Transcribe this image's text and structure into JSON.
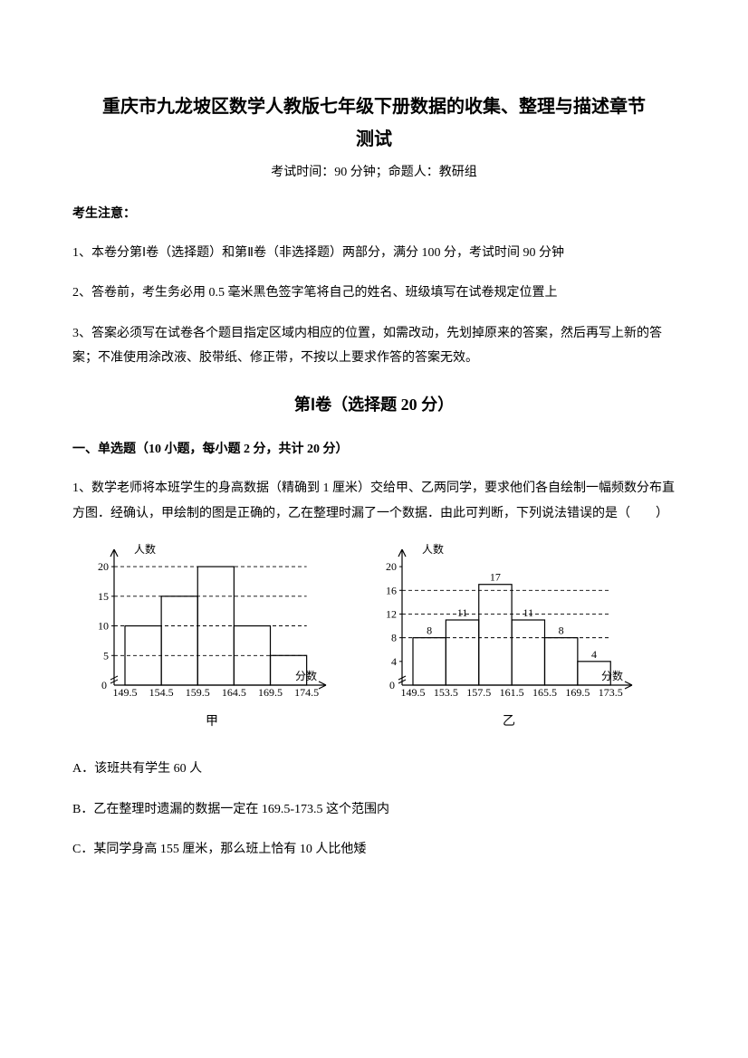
{
  "title_line1": "重庆市九龙坡区数学人教版七年级下册数据的收集、整理与描述章节",
  "title_line2": "测试",
  "subtitle": "考试时间：90 分钟；命题人：教研组",
  "notice_head": "考生注意：",
  "notice": [
    "1、本卷分第Ⅰ卷（选择题）和第Ⅱ卷（非选择题）两部分，满分 100 分，考试时间 90 分钟",
    "2、答卷前，考生务必用 0.5 毫米黑色签字笔将自己的姓名、班级填写在试卷规定位置上",
    "3、答案必须写在试卷各个题目指定区域内相应的位置，如需改动，先划掉原来的答案，然后再写上新的答案；不准使用涂改液、胶带纸、修正带，不按以上要求作答的答案无效。"
  ],
  "section_head": "第Ⅰ卷（选择题  20 分）",
  "subsection": "一、单选题（10 小题，每小题 2 分，共计 20 分）",
  "q1": "1、数学老师将本班学生的身高数据（精确到 1 厘米）交给甲、乙两同学，要求他们各自绘制一幅频数分布直方图．经确认，甲绘制的图是正确的，乙在整理时漏了一个数据．由此可判断，下列说法错误的是（　　）",
  "chart_jia": {
    "axis_y_label": "人数",
    "axis_x_label": "分数",
    "caption": "甲",
    "y_ticks": [
      0,
      5,
      10,
      15,
      20
    ],
    "y_max": 22,
    "x_labels": [
      "149.5",
      "154.5",
      "159.5",
      "164.5",
      "169.5",
      "174.5"
    ],
    "bars": [
      {
        "h": 10
      },
      {
        "h": 15
      },
      {
        "h": 20
      },
      {
        "h": 10
      },
      {
        "h": 5
      }
    ],
    "colors": {
      "stroke": "#000000",
      "bg": "#ffffff"
    },
    "bar_value_labels_visible": false
  },
  "chart_yi": {
    "axis_y_label": "人数",
    "axis_x_label": "分数",
    "caption": "乙",
    "y_ticks": [
      0,
      4,
      8,
      12,
      16,
      20
    ],
    "y_max": 22,
    "x_labels": [
      "149.5",
      "153.5",
      "157.5",
      "161.5",
      "165.5",
      "169.5",
      "173.5"
    ],
    "bars": [
      {
        "h": 8,
        "label": "8"
      },
      {
        "h": 11,
        "label": "11"
      },
      {
        "h": 17,
        "label": "17"
      },
      {
        "h": 11,
        "label": "11"
      },
      {
        "h": 8,
        "label": "8"
      },
      {
        "h": 4,
        "label": "4"
      }
    ],
    "colors": {
      "stroke": "#000000",
      "bg": "#ffffff"
    },
    "bar_value_labels_visible": true,
    "dash_y_at": [
      8,
      12,
      16
    ]
  },
  "options": {
    "A": "A．该班共有学生 60 人",
    "B": "B．乙在整理时遗漏的数据一定在 169.5-173.5 这个范围内",
    "C": "C．某同学身高 155 厘米，那么班上恰有 10 人比他矮"
  }
}
